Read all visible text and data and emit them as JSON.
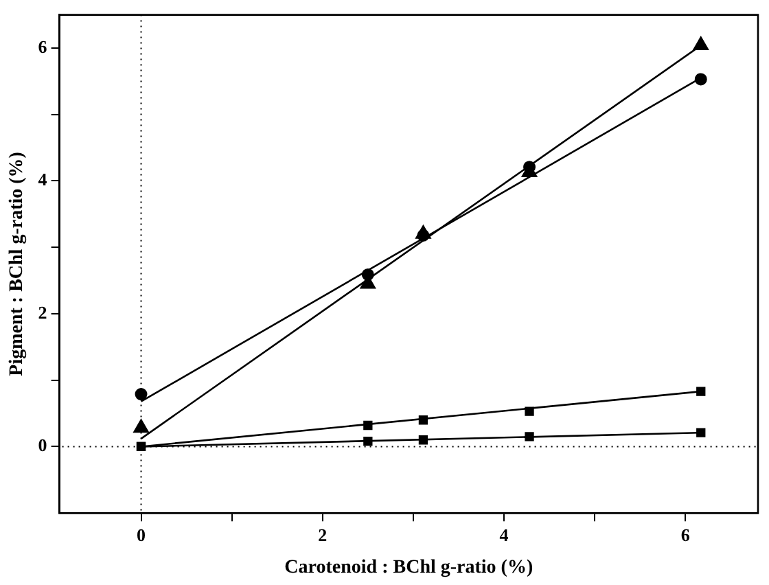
{
  "chart_data": {
    "type": "scatter",
    "xlabel": "Carotenoid : BChl g-ratio (%)",
    "ylabel": "Pigment : BChl g-ratio (%)",
    "xlim": [
      -0.9,
      6.8
    ],
    "ylim": [
      -1,
      6.5
    ],
    "xticks": [
      0,
      {
        "value": 1,
        "label": null
      },
      2,
      {
        "value": 3,
        "label": null
      },
      4,
      {
        "value": 5,
        "label": null
      },
      6
    ],
    "yticks": [
      0,
      {
        "value": 1,
        "label": null
      },
      2,
      {
        "value": 3,
        "label": null
      },
      4,
      {
        "value": 5,
        "label": null
      },
      6
    ],
    "grid": false,
    "legend": false,
    "ref_lines": [
      {
        "axis": "x",
        "value": 0,
        "line_style": "dotted"
      },
      {
        "axis": "y",
        "value": 0,
        "line_style": "dotted"
      }
    ],
    "series": [
      {
        "type": "scatter",
        "marker": "circle",
        "color": "#000000",
        "x": [
          0,
          2.5,
          3.11,
          4.28,
          6.17
        ],
        "values": [
          0.79,
          2.59,
          3.18,
          4.21,
          5.53
        ]
      },
      {
        "type": "scatter",
        "marker": "triangle",
        "color": "#000000",
        "x": [
          0,
          2.5,
          3.11,
          4.28,
          6.17
        ],
        "values": [
          0.28,
          2.45,
          3.2,
          4.13,
          6.04
        ]
      },
      {
        "type": "scatter",
        "marker": "square",
        "color": "#000000",
        "x": [
          0,
          2.5,
          3.11,
          4.28,
          6.17
        ],
        "values": [
          0,
          0.32,
          0.4,
          0.53,
          0.83
        ]
      },
      {
        "type": "scatter",
        "marker": "square",
        "color": "#000000",
        "x": [
          0,
          2.5,
          3.11,
          4.28,
          6.17
        ],
        "values": [
          0,
          0.08,
          0.1,
          0.15,
          0.21
        ]
      },
      {
        "type": "line",
        "marker": "none",
        "color": "#000000",
        "x": [
          0,
          6.17
        ],
        "values": [
          0.68,
          5.55
        ]
      },
      {
        "type": "line",
        "marker": "none",
        "color": "#000000",
        "x": [
          0,
          6.17
        ],
        "values": [
          0.12,
          6.04
        ]
      },
      {
        "type": "line",
        "marker": "none",
        "color": "#000000",
        "x": [
          0,
          6.17
        ],
        "values": [
          0,
          0.83
        ]
      },
      {
        "type": "line",
        "marker": "none",
        "color": "#000000",
        "x": [
          0,
          6.17
        ],
        "values": [
          0,
          0.21
        ]
      }
    ]
  }
}
